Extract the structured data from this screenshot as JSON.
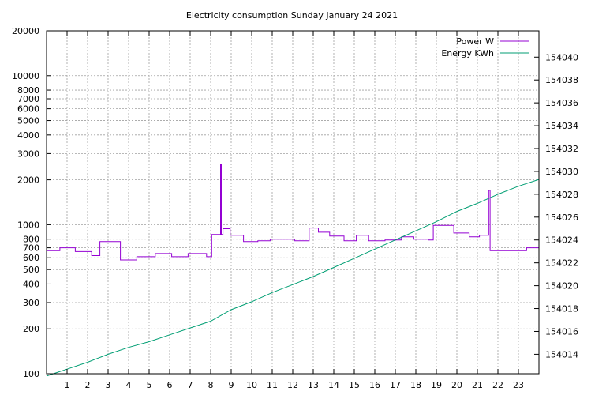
{
  "chart_data": {
    "type": "line",
    "title": "Electricity consumption Sunday January 24 2021",
    "xlabel": "",
    "ylabel": "",
    "y2label": "",
    "xlim": [
      0,
      24
    ],
    "ylim": [
      100,
      20000
    ],
    "ylog": true,
    "y2lim": [
      154012.3,
      154042.3
    ],
    "grid": true,
    "legend_position": "top-right",
    "x_ticks": [
      1,
      2,
      3,
      4,
      5,
      6,
      7,
      8,
      9,
      10,
      11,
      12,
      13,
      14,
      15,
      16,
      17,
      18,
      19,
      20,
      21,
      22,
      23
    ],
    "y_ticks": [
      100,
      200,
      300,
      400,
      500,
      600,
      700,
      800,
      1000,
      2000,
      3000,
      4000,
      5000,
      6000,
      7000,
      8000,
      10000,
      20000
    ],
    "y_tick_labels": [
      "100",
      "200",
      "300",
      "400",
      "500",
      "600",
      "700",
      "800",
      "1000",
      "2000",
      "3000",
      "4000",
      "5000",
      "6000",
      "7000",
      "8000",
      "10000",
      "20000"
    ],
    "y2_ticks": [
      154014,
      154016,
      154018,
      154020,
      154022,
      154024,
      154026,
      154028,
      154030,
      154032,
      154034,
      154036,
      154038,
      154040
    ],
    "y2_tick_labels": [
      "154014",
      "154016",
      "154018",
      "154020",
      "154022",
      "154024",
      "154026",
      "154028",
      "154030",
      "154032",
      "154034",
      "154036",
      "154038",
      "154040"
    ],
    "series": [
      {
        "name": "Power W",
        "color": "#9400d3",
        "axis": "y",
        "step": true,
        "points": [
          [
            0,
            670
          ],
          [
            0.65,
            700
          ],
          [
            1.4,
            660
          ],
          [
            2.2,
            620
          ],
          [
            2.6,
            770
          ],
          [
            3.6,
            580
          ],
          [
            4.4,
            610
          ],
          [
            5.3,
            640
          ],
          [
            6.1,
            610
          ],
          [
            6.9,
            640
          ],
          [
            7.8,
            610
          ],
          [
            8.05,
            860
          ],
          [
            8.48,
            2550
          ],
          [
            8.52,
            860
          ],
          [
            8.6,
            940
          ],
          [
            8.95,
            850
          ],
          [
            9.6,
            770
          ],
          [
            10.3,
            780
          ],
          [
            10.9,
            800
          ],
          [
            12.1,
            780
          ],
          [
            12.8,
            950
          ],
          [
            13.25,
            890
          ],
          [
            13.8,
            840
          ],
          [
            14.5,
            780
          ],
          [
            15.1,
            850
          ],
          [
            15.7,
            780
          ],
          [
            16.5,
            790
          ],
          [
            17.3,
            830
          ],
          [
            17.9,
            800
          ],
          [
            18.6,
            790
          ],
          [
            18.85,
            990
          ],
          [
            19.85,
            880
          ],
          [
            20.6,
            830
          ],
          [
            21.1,
            850
          ],
          [
            21.55,
            1700
          ],
          [
            21.62,
            670
          ],
          [
            23.0,
            670
          ],
          [
            23.4,
            700
          ],
          [
            24,
            700
          ]
        ]
      },
      {
        "name": "Energy KWh",
        "color": "#009e73",
        "axis": "y2",
        "step": false,
        "points": [
          [
            0,
            154012.1
          ],
          [
            1,
            154012.7
          ],
          [
            2,
            154013.3
          ],
          [
            3,
            154014.0
          ],
          [
            4,
            154014.6
          ],
          [
            5,
            154015.1
          ],
          [
            6,
            154015.7
          ],
          [
            7,
            154016.3
          ],
          [
            8,
            154016.9
          ],
          [
            9,
            154017.9
          ],
          [
            10,
            154018.6
          ],
          [
            11,
            154019.4
          ],
          [
            12,
            154020.1
          ],
          [
            13,
            154020.8
          ],
          [
            14,
            154021.6
          ],
          [
            15,
            154022.4
          ],
          [
            16,
            154023.2
          ],
          [
            17,
            154024.0
          ],
          [
            18,
            154024.8
          ],
          [
            19,
            154025.6
          ],
          [
            20,
            154026.5
          ],
          [
            21,
            154027.2
          ],
          [
            22,
            154028.0
          ],
          [
            23,
            154028.7
          ],
          [
            24,
            154029.3
          ]
        ]
      }
    ]
  }
}
